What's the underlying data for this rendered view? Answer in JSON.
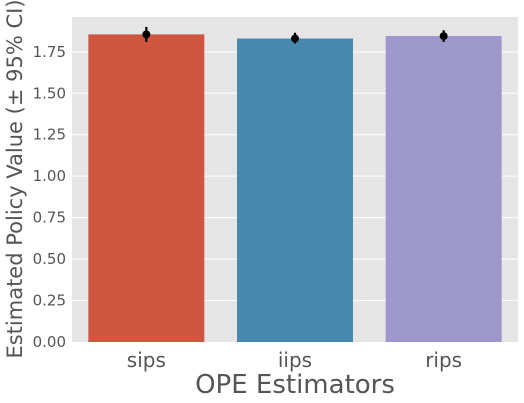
{
  "chart_data": {
    "type": "bar",
    "title": "",
    "xlabel": "OPE Estimators",
    "ylabel": "Estimated Policy Value (± 95% CI)",
    "categories": [
      "sips",
      "iips",
      "rips"
    ],
    "values": [
      1.855,
      1.83,
      1.845
    ],
    "ci_low": [
      1.81,
      1.8,
      1.81
    ],
    "ci_high": [
      1.9,
      1.865,
      1.88
    ],
    "colors": [
      "#d0573f",
      "#4888ae",
      "#9d97cb"
    ],
    "ylim": [
      0,
      1.96
    ],
    "yticks": [
      "0.00",
      "0.25",
      "0.50",
      "0.75",
      "1.00",
      "1.25",
      "1.50",
      "1.75"
    ],
    "grid": true,
    "background": "#e5e5e5",
    "errorbar_color": "#000000"
  }
}
